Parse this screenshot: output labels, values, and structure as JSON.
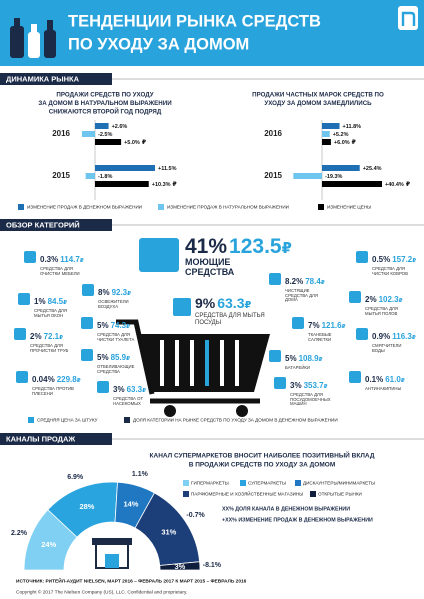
{
  "header": {
    "title": [
      "ТЕНДЕНЦИИ РЫНКА СРЕДСТВ",
      "ПО УХОДУ ЗА ДОМОМ"
    ]
  },
  "sections": [
    "ДИНАМИКА РЫНКА",
    "ОБЗОР КАТЕГОРИЙ",
    "КАНАЛЫ ПРОДАЖ"
  ],
  "currency": "₽",
  "chart_data": [
    {
      "type": "bar",
      "title": [
        "ПРОДАЖИ СРЕДСТВ ПО УХОДУ",
        "ЗА ДОМОМ В НАТУРАЛЬНОМ ВЫРАЖЕНИИ",
        "СНИЖАЮТСЯ ВТОРОЙ ГОД ПОДРЯД"
      ],
      "categories": [
        "2016",
        "2015"
      ],
      "series": [
        {
          "name": "ИЗМЕНЕНИЕ ПРОДАЖ В ДЕНЕЖНОМ ВЫРАЖЕНИИ",
          "color": "#1f6fb5",
          "values": [
            2.6,
            11.5
          ],
          "value_labels": [
            "+2.6%",
            "+11.5%"
          ]
        },
        {
          "name": "ИЗМЕНЕНИЕ ПРОДАЖ В НАТУРАЛЬНОМ ВЫРАЖЕНИИ",
          "color": "#6ec6ee",
          "values": [
            -2.5,
            -1.8
          ],
          "value_labels": [
            "-2.5%",
            "-1.8%"
          ]
        },
        {
          "name": "ИЗМЕНЕНИЕ ЦЕНЫ",
          "color": "#000000",
          "values": [
            5.0,
            10.3
          ],
          "value_labels": [
            "+5.0%",
            "+10.3%"
          ]
        }
      ]
    },
    {
      "type": "bar",
      "title": [
        "ПРОДАЖИ ЧАСТНЫХ МАРОК СРЕДСТВ ПО",
        "УХОДУ ЗА ДОМОМ ЗАМЕДЛИЛИСЬ"
      ],
      "categories": [
        "2016",
        "2015"
      ],
      "series": [
        {
          "color": "#1f6fb5",
          "values": [
            11.8,
            25.4
          ],
          "value_labels": [
            "+11.8%",
            "+25.4%"
          ]
        },
        {
          "color": "#6ec6ee",
          "values": [
            5.2,
            -19.3
          ],
          "value_labels": [
            "+5.2%",
            "-19.3%"
          ]
        },
        {
          "color": "#000000",
          "values": [
            6.0,
            40.4
          ],
          "value_labels": [
            "+6.0%",
            "+40.4%"
          ]
        }
      ]
    },
    {
      "type": "pie",
      "donut": true,
      "half": true,
      "title": [
        "КАНАЛ СУПЕРМАРКЕТОВ ВНОСИТ НАИБОЛЕЕ ПОЗИТИВНЫЙ ВКЛАД",
        "В ПРОДАЖИ СРЕДСТВ ПО УХОДУ ЗА ДОМОМ"
      ],
      "categories": [
        "ГИПЕРМАРКЕТЫ",
        "СУПЕРМАРКЕТЫ",
        "ДИСКАУНТЕРЫ/МИНИМАРКЕТЫ",
        "ПАРФЮМЕРНЫЕ И ХОЗЯЙСТВЕННЫЕ МАГАЗИНЫ",
        "ОТКРЫТЫЕ РЫНКИ"
      ],
      "colors": [
        "#7fd0f2",
        "#2aa4de",
        "#1f78c1",
        "#1c3f7a",
        "#0f1e3d"
      ],
      "values": [
        24,
        28,
        14,
        31,
        3
      ],
      "value_labels": [
        "24%",
        "28%",
        "14%",
        "31%",
        "3%"
      ],
      "growth": [
        2.2,
        6.9,
        1.1,
        -0.7,
        -8.1
      ],
      "growth_labels": [
        "2.2%",
        "6.9%",
        "1.1%",
        "-0.7%",
        "-8.1%"
      ],
      "notes": [
        "XX% ДОЛЯ КАНАЛА В ДЕНЕЖНОМ ВЫРАЖЕНИИ",
        "+XX% ИЗМЕНЕНИЕ ПРОДАЖ В ДЕНЕЖНОМ ВЫРАЖЕНИИ"
      ]
    }
  ],
  "categories_overview": {
    "items": [
      {
        "share": "0.3%",
        "price": "114.7",
        "name": "СРЕДСТВА ДЛЯ ОЧИСТКИ МЕБЕЛИ"
      },
      {
        "share": "41%",
        "price": "123.5",
        "name": "МОЮЩИЕ СРЕДСТВА"
      },
      {
        "share": "0.5%",
        "price": "157.2",
        "name": "СРЕДСТВА ДЛЯ ЧИСТКИ КОВРОВ"
      },
      {
        "share": "8%",
        "price": "92.3",
        "name": "ОСВЕЖИТЕЛИ ВОЗДУХА"
      },
      {
        "share": "1%",
        "price": "84.5",
        "name": "СРЕДСТВА ДЛЯ МЫТЬЯ ОКОН"
      },
      {
        "share": "8.2%",
        "price": "78.4",
        "name": "ЧИСТЯЩИЕ СРЕДСТВА ДЛЯ ДОМА"
      },
      {
        "share": "2%",
        "price": "102.3",
        "name": "СРЕДСТВА ДЛЯ МЫТЬЯ ПОЛОВ"
      },
      {
        "share": "9%",
        "price": "63.3",
        "name": "СРЕДСТВА ДЛЯ МЫТЬЯ ПОСУДЫ"
      },
      {
        "share": "5%",
        "price": "74.3",
        "name": "СРЕДСТВА ДЛЯ ЧИСТКИ ТУАЛЕТА"
      },
      {
        "share": "2%",
        "price": "72.1",
        "name": "СРЕДСТВА ДЛЯ ПРОЧИСТКИ ТРУБ"
      },
      {
        "share": "7%",
        "price": "121.6",
        "name": "ТКАНЕВЫЕ САЛФЕТКИ"
      },
      {
        "share": "0.9%",
        "price": "116.3",
        "name": "СМЯГЧИТЕЛИ ВОДЫ"
      },
      {
        "share": "5%",
        "price": "85.9",
        "name": "ОТБЕЛИВАЮЩИЕ СРЕДСТВА"
      },
      {
        "share": "0.04%",
        "price": "229.8",
        "name": "СРЕДСТВА ПРОТИВ ПЛЕСЕНИ"
      },
      {
        "share": "5%",
        "price": "108.9",
        "name": "БАТАРЕЙКИ"
      },
      {
        "share": "3%",
        "price": "63.3",
        "name": "СРЕДСТВА ОТ НАСЕКОМЫХ"
      },
      {
        "share": "3%",
        "price": "353.7",
        "name": "СРЕДСТВА ДЛЯ ПОСУДОМОЕЧНЫХ МАШИН"
      },
      {
        "share": "0.1%",
        "price": "61.0",
        "name": "АНТИНАКИПИНЫ"
      }
    ],
    "legend": [
      {
        "label": "СРЕДНЯЯ ЦЕНА ЗА ШТУКУ",
        "color": "#29a3dc"
      },
      {
        "label": "ДОЛЯ КАТЕГОРИИ НА РЫНКЕ СРЕДСТВ ПО УХОДУ ЗА ДОМОМ В ДЕНЕЖНОМ ВЫРАЖЕНИИ",
        "color": "#1b2a47"
      }
    ]
  },
  "footer": {
    "source": "ИСТОЧНИК: РИТЕЙЛ-АУДИТ NIELSEN, МАРТ 2016 – ФЕВРАЛЬ 2017 К МАРТ 2015 – ФЕВРАЛЬ 2016",
    "copyright": "Copyright © 2017 The Nielsen Company (US), LLC. Confidential and proprietary."
  }
}
